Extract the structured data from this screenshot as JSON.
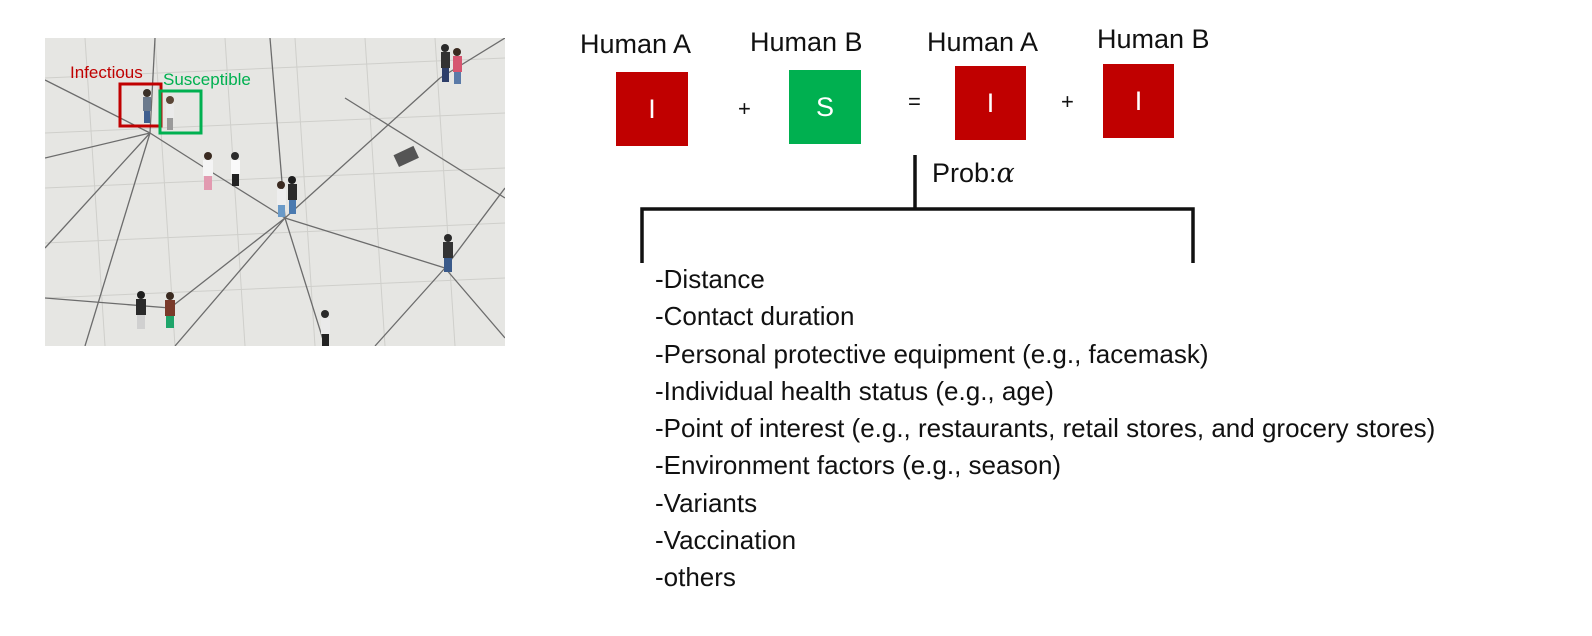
{
  "photo": {
    "infectious_label": "Infectious",
    "susceptible_label": "Susceptible",
    "colors": {
      "infectious": "#c00000",
      "susceptible": "#00b050"
    }
  },
  "equation": {
    "terms": [
      {
        "label": "Human A",
        "state": "I",
        "color": "#c00000"
      },
      {
        "label": "Human B",
        "state": "S",
        "color": "#00b050"
      },
      {
        "label": "Human A",
        "state": "I",
        "color": "#c00000"
      },
      {
        "label": "Human B",
        "state": "I",
        "color": "#c00000"
      }
    ],
    "operators": [
      "+",
      "=",
      "+"
    ]
  },
  "probability": {
    "prefix": "Prob:",
    "symbol": "α"
  },
  "factors": [
    "-Distance",
    "-Contact duration",
    "-Personal protective equipment (e.g., facemask)",
    "-Individual health status (e.g., age)",
    "-Point of interest (e.g., restaurants, retail stores, and grocery stores)",
    "-Environment factors (e.g., season)",
    "-Variants",
    "-Vaccination",
    "-others"
  ]
}
